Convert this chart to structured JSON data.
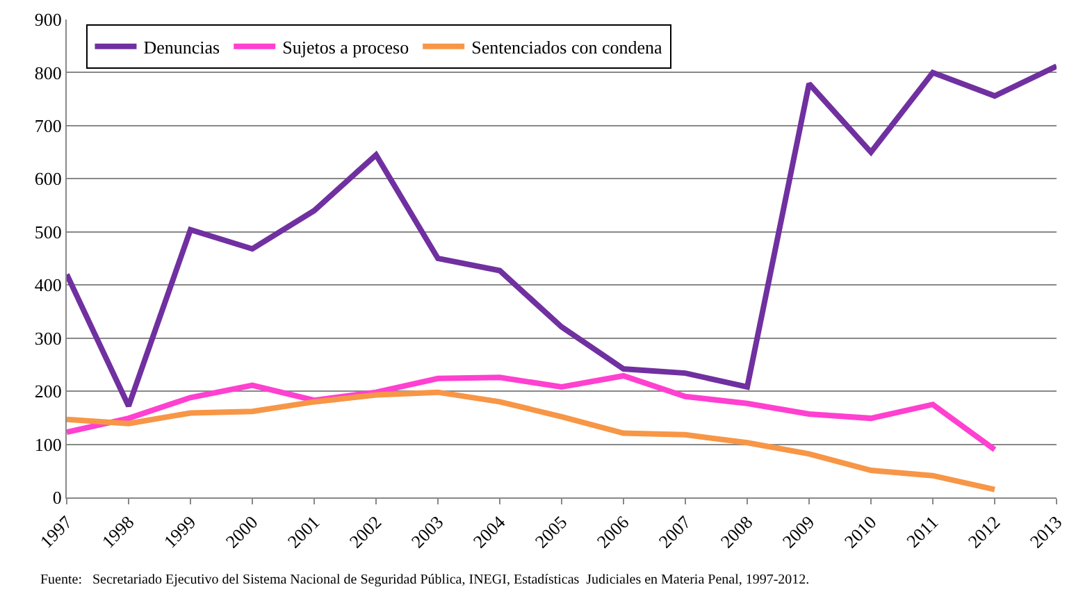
{
  "chart_data": {
    "type": "line",
    "x": [
      1997,
      1998,
      1999,
      2000,
      2001,
      2002,
      2003,
      2004,
      2005,
      2006,
      2007,
      2008,
      2009,
      2010,
      2011,
      2012,
      2013
    ],
    "series": [
      {
        "name": "Denuncias",
        "color": "#7030a0",
        "values": [
          420,
          172,
          504,
          468,
          540,
          645,
          450,
          427,
          321,
          242,
          234,
          208,
          779,
          650,
          800,
          756,
          812
        ]
      },
      {
        "name": "Sujetos a proceso",
        "color": "#ff40d0",
        "values": [
          123,
          149,
          188,
          211,
          183,
          198,
          224,
          226,
          208,
          229,
          190,
          177,
          157,
          149,
          175,
          90,
          null
        ]
      },
      {
        "name": "Sentenciados con condena",
        "color": "#f79646",
        "values": [
          147,
          139,
          159,
          162,
          180,
          193,
          198,
          180,
          152,
          121,
          118,
          103,
          82,
          51,
          41,
          15,
          null
        ]
      }
    ],
    "xlim": [
      1997,
      2013
    ],
    "xticks": [
      1997,
      1998,
      1999,
      2000,
      2001,
      2002,
      2003,
      2004,
      2005,
      2006,
      2007,
      2008,
      2009,
      2010,
      2011,
      2012,
      2013
    ],
    "ylim": [
      0,
      900
    ],
    "yticks": [
      0,
      100,
      200,
      300,
      400,
      500,
      600,
      700,
      800,
      900
    ],
    "grid": "y",
    "legend": "top left",
    "marker": "none",
    "line_style": "solid",
    "annotations": [
      "Fuente:   Secretariado Ejecutivo del Sistema Nacional de Seguridad Pública, INEGI, Estadísticas  Judiciales en Materia Penal, 1997-2012."
    ]
  }
}
